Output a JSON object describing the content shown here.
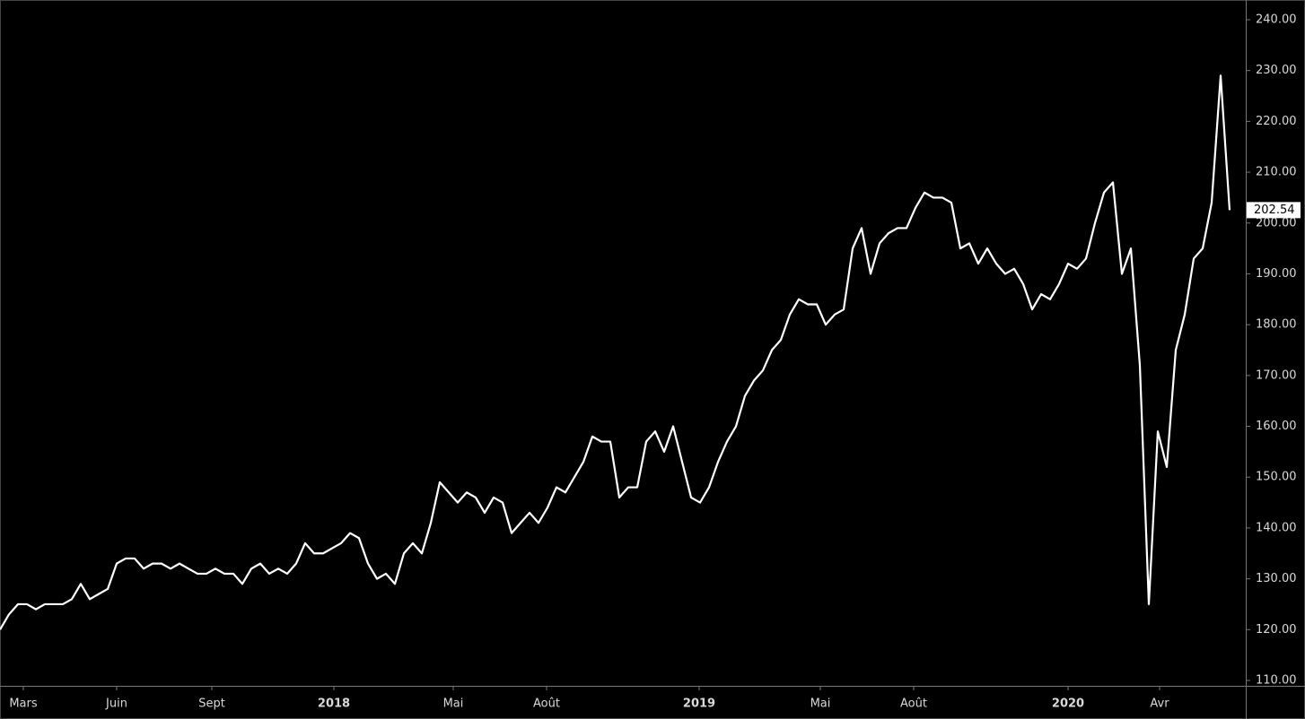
{
  "chart_data": {
    "type": "line",
    "series": [
      {
        "color": "#ffffff",
        "values": [
          120,
          123,
          125,
          125,
          124,
          125,
          125,
          125,
          126,
          129,
          126,
          127,
          128,
          133,
          134,
          134,
          132,
          133,
          133,
          132,
          133,
          132,
          131,
          131,
          132,
          131,
          131,
          129,
          132,
          133,
          131,
          132,
          131,
          133,
          137,
          135,
          135,
          136,
          137,
          139,
          138,
          133,
          130,
          131,
          129,
          135,
          137,
          135,
          141,
          149,
          147,
          145,
          147,
          146,
          143,
          146,
          145,
          139,
          141,
          143,
          141,
          144,
          148,
          147,
          150,
          153,
          158,
          157,
          157,
          146,
          148,
          148,
          157,
          159,
          155,
          160,
          153,
          146,
          145,
          148,
          153,
          157,
          160,
          166,
          169,
          171,
          175,
          177,
          182,
          185,
          184,
          184,
          180,
          182,
          183,
          195,
          199,
          190,
          196,
          198,
          199,
          199,
          203,
          206,
          205,
          205,
          204,
          195,
          196,
          192,
          195,
          192,
          190,
          191,
          188,
          183,
          186,
          185,
          188,
          192,
          191,
          193,
          200,
          206,
          208,
          190,
          195,
          172,
          125,
          159,
          152,
          175,
          182,
          193,
          195,
          204,
          229,
          202.54
        ]
      }
    ],
    "xlim": [
      0,
      138.8
    ],
    "xticks": [
      {
        "value": 2.6,
        "label": "Mars"
      },
      {
        "value": 13,
        "label": "Juin"
      },
      {
        "value": 23.6,
        "label": "Sept"
      },
      {
        "value": 37.2,
        "label": "2018"
      },
      {
        "value": 50.5,
        "label": "Mai"
      },
      {
        "value": 60.9,
        "label": "Août"
      },
      {
        "value": 77.9,
        "label": "2019"
      },
      {
        "value": 91.4,
        "label": "Mai"
      },
      {
        "value": 101.8,
        "label": "Août"
      },
      {
        "value": 119,
        "label": "2020"
      },
      {
        "value": 129.2,
        "label": "Avr"
      }
    ],
    "ylim": [
      110,
      240
    ],
    "yticks": [
      {
        "value": 110,
        "label": "110.00"
      },
      {
        "value": 120,
        "label": "120.00"
      },
      {
        "value": 130,
        "label": "130.00"
      },
      {
        "value": 140,
        "label": "140.00"
      },
      {
        "value": 150,
        "label": "150.00"
      },
      {
        "value": 160,
        "label": "160.00"
      },
      {
        "value": 170,
        "label": "170.00"
      },
      {
        "value": 180,
        "label": "180.00"
      },
      {
        "value": 190,
        "label": "190.00"
      },
      {
        "value": 200,
        "label": "200.00"
      },
      {
        "value": 210,
        "label": "210.00"
      },
      {
        "value": 220,
        "label": "220.00"
      },
      {
        "value": 230,
        "label": "230.00"
      },
      {
        "value": 240,
        "label": "240.00"
      }
    ]
  }
}
